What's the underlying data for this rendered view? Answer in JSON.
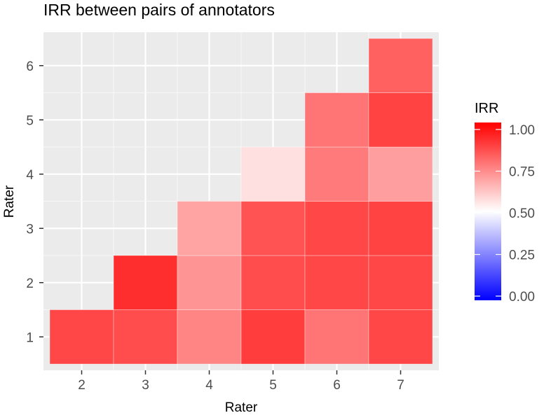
{
  "chart_data": {
    "type": "heatmap",
    "title": "IRR between pairs of annotators",
    "xlabel": "Rater",
    "ylabel": "Rater",
    "x_categories": [
      "2",
      "3",
      "4",
      "5",
      "6",
      "7"
    ],
    "y_categories": [
      "1",
      "2",
      "3",
      "4",
      "5",
      "6"
    ],
    "cells": [
      {
        "x": "2",
        "y": "1",
        "value": 0.86
      },
      {
        "x": "3",
        "y": "1",
        "value": 0.85
      },
      {
        "x": "3",
        "y": "2",
        "value": 0.91
      },
      {
        "x": "4",
        "y": "1",
        "value": 0.74
      },
      {
        "x": "4",
        "y": "2",
        "value": 0.71
      },
      {
        "x": "4",
        "y": "3",
        "value": 0.68
      },
      {
        "x": "5",
        "y": "1",
        "value": 0.88
      },
      {
        "x": "5",
        "y": "2",
        "value": 0.85
      },
      {
        "x": "5",
        "y": "3",
        "value": 0.84
      },
      {
        "x": "5",
        "y": "4",
        "value": 0.56
      },
      {
        "x": "6",
        "y": "1",
        "value": 0.77
      },
      {
        "x": "6",
        "y": "2",
        "value": 0.86
      },
      {
        "x": "6",
        "y": "3",
        "value": 0.86
      },
      {
        "x": "6",
        "y": "4",
        "value": 0.76
      },
      {
        "x": "6",
        "y": "5",
        "value": 0.77
      },
      {
        "x": "7",
        "y": "1",
        "value": 0.86
      },
      {
        "x": "7",
        "y": "2",
        "value": 0.86
      },
      {
        "x": "7",
        "y": "3",
        "value": 0.87
      },
      {
        "x": "7",
        "y": "4",
        "value": 0.69
      },
      {
        "x": "7",
        "y": "5",
        "value": 0.87
      },
      {
        "x": "7",
        "y": "6",
        "value": 0.81
      }
    ],
    "legend": {
      "title": "IRR",
      "range": [
        0,
        1
      ],
      "midpoint": 0.5,
      "ticks": [
        "0.00",
        "0.25",
        "0.50",
        "0.75",
        "1.00"
      ],
      "colors": {
        "low": "#0000ff",
        "mid": "#ffffff",
        "high": "#ff0000"
      },
      "placement": "right"
    },
    "grid": true,
    "colors": {
      "panel": "#ebebeb",
      "grid": "#ffffff"
    }
  }
}
